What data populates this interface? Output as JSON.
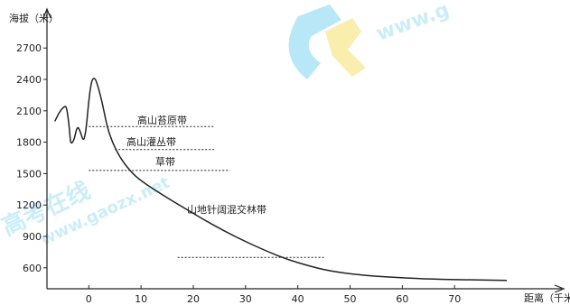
{
  "watermark": {
    "text_1": "高考在线",
    "text_2": "www.gaozx.net",
    "text_3": "www.g",
    "logo_name": "gk-logo",
    "colors": {
      "cyan": "#7fd6f0",
      "yellow": "#f4e16a"
    }
  },
  "chart_data": {
    "type": "line",
    "title": "",
    "ylabel": "海拔（米）",
    "xlabel": "距离（千米）",
    "yticks": [
      600,
      900,
      1200,
      1500,
      1800,
      2100,
      2400,
      2700
    ],
    "xticks": [
      0,
      10,
      20,
      30,
      40,
      50,
      60,
      70
    ],
    "xlim": [
      -8,
      85
    ],
    "ylim": [
      400,
      2900
    ],
    "series": [
      {
        "values": [
          [
            -6.5,
            2000
          ],
          [
            -5.5,
            2100
          ],
          [
            -4.5,
            2150
          ],
          [
            -4.2,
            2120
          ],
          [
            -3.8,
            1980
          ],
          [
            -3.6,
            1850
          ],
          [
            -3.4,
            1780
          ],
          [
            -2.8,
            1820
          ],
          [
            -2.2,
            1960
          ],
          [
            -1.6,
            1900
          ],
          [
            -1.0,
            1800
          ],
          [
            -0.5,
            1920
          ],
          [
            0,
            2200
          ],
          [
            0.5,
            2380
          ],
          [
            1.0,
            2420
          ],
          [
            1.5,
            2380
          ],
          [
            2.5,
            2200
          ],
          [
            3.5,
            1950
          ],
          [
            4.5,
            1800
          ],
          [
            6.0,
            1650
          ],
          [
            8.0,
            1520
          ],
          [
            10.0,
            1430
          ],
          [
            14.0,
            1300
          ],
          [
            18.0,
            1180
          ],
          [
            22.0,
            1060
          ],
          [
            26.0,
            950
          ],
          [
            30.0,
            850
          ],
          [
            34.0,
            760
          ],
          [
            38.0,
            680
          ],
          [
            42.0,
            620
          ],
          [
            46.0,
            570
          ],
          [
            52.0,
            530
          ],
          [
            58.0,
            510
          ],
          [
            64.0,
            495
          ],
          [
            72.0,
            485
          ],
          [
            80.0,
            480
          ]
        ]
      }
    ],
    "zones": [
      {
        "label": "高山苔原带",
        "boundary_y": 1950,
        "x_range": [
          0,
          24
        ]
      },
      {
        "label": "高山灌丛带",
        "boundary_y": 1730,
        "x_range": [
          5,
          24
        ]
      },
      {
        "label": "草带",
        "boundary_y": 1530,
        "x_range": [
          0,
          27
        ]
      },
      {
        "label": "山地针阔混交林带",
        "boundary_y": 700,
        "x_range": [
          17,
          45
        ]
      }
    ],
    "grid": false,
    "legend": "none",
    "line_color": "#222222",
    "boundary_style": "dotted"
  }
}
